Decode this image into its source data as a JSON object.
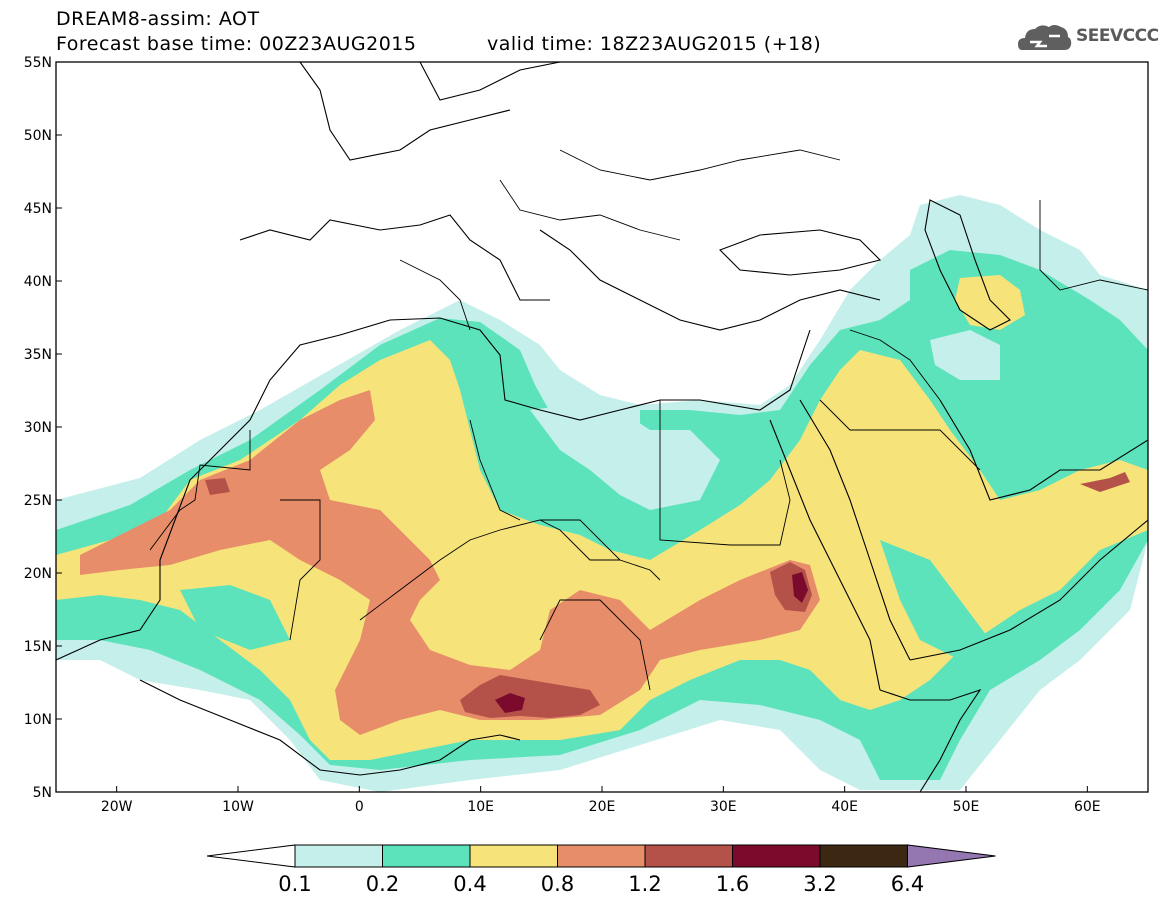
{
  "header": {
    "line1": "DREAM8-assim: AOT",
    "line2_left": "Forecast base time: 00Z23AUG2015",
    "line2_right": "valid time: 18Z23AUG2015 (+18)"
  },
  "logo": {
    "icon": "cloud-icon",
    "text": "SEEVCCC"
  },
  "map": {
    "lon_range": [
      -25,
      65
    ],
    "lat_range": [
      5,
      55
    ],
    "lon_ticks": [
      {
        "lon": -20,
        "label": "20W"
      },
      {
        "lon": -10,
        "label": "10W"
      },
      {
        "lon": 0,
        "label": "0"
      },
      {
        "lon": 10,
        "label": "10E"
      },
      {
        "lon": 20,
        "label": "20E"
      },
      {
        "lon": 30,
        "label": "30E"
      },
      {
        "lon": 40,
        "label": "40E"
      },
      {
        "lon": 50,
        "label": "50E"
      },
      {
        "lon": 60,
        "label": "60E"
      }
    ],
    "lat_ticks": [
      {
        "lat": 55,
        "label": "55N"
      },
      {
        "lat": 50,
        "label": "50N"
      },
      {
        "lat": 45,
        "label": "45N"
      },
      {
        "lat": 40,
        "label": "40N"
      },
      {
        "lat": 35,
        "label": "35N"
      },
      {
        "lat": 30,
        "label": "30N"
      },
      {
        "lat": 25,
        "label": "25N"
      },
      {
        "lat": 20,
        "label": "20N"
      },
      {
        "lat": 15,
        "label": "15N"
      },
      {
        "lat": 10,
        "label": "10N"
      },
      {
        "lat": 5,
        "label": "5N"
      }
    ]
  },
  "colorbar": {
    "levels": [
      "0.1",
      "0.2",
      "0.4",
      "0.8",
      "1.2",
      "1.6",
      "3.2",
      "6.4"
    ],
    "colors": [
      "#ffffff",
      "#c5efea",
      "#5de3bb",
      "#f6e47b",
      "#e78d69",
      "#b4524a",
      "#7b0a2c",
      "#3c2712",
      "#9477b0"
    ]
  }
}
